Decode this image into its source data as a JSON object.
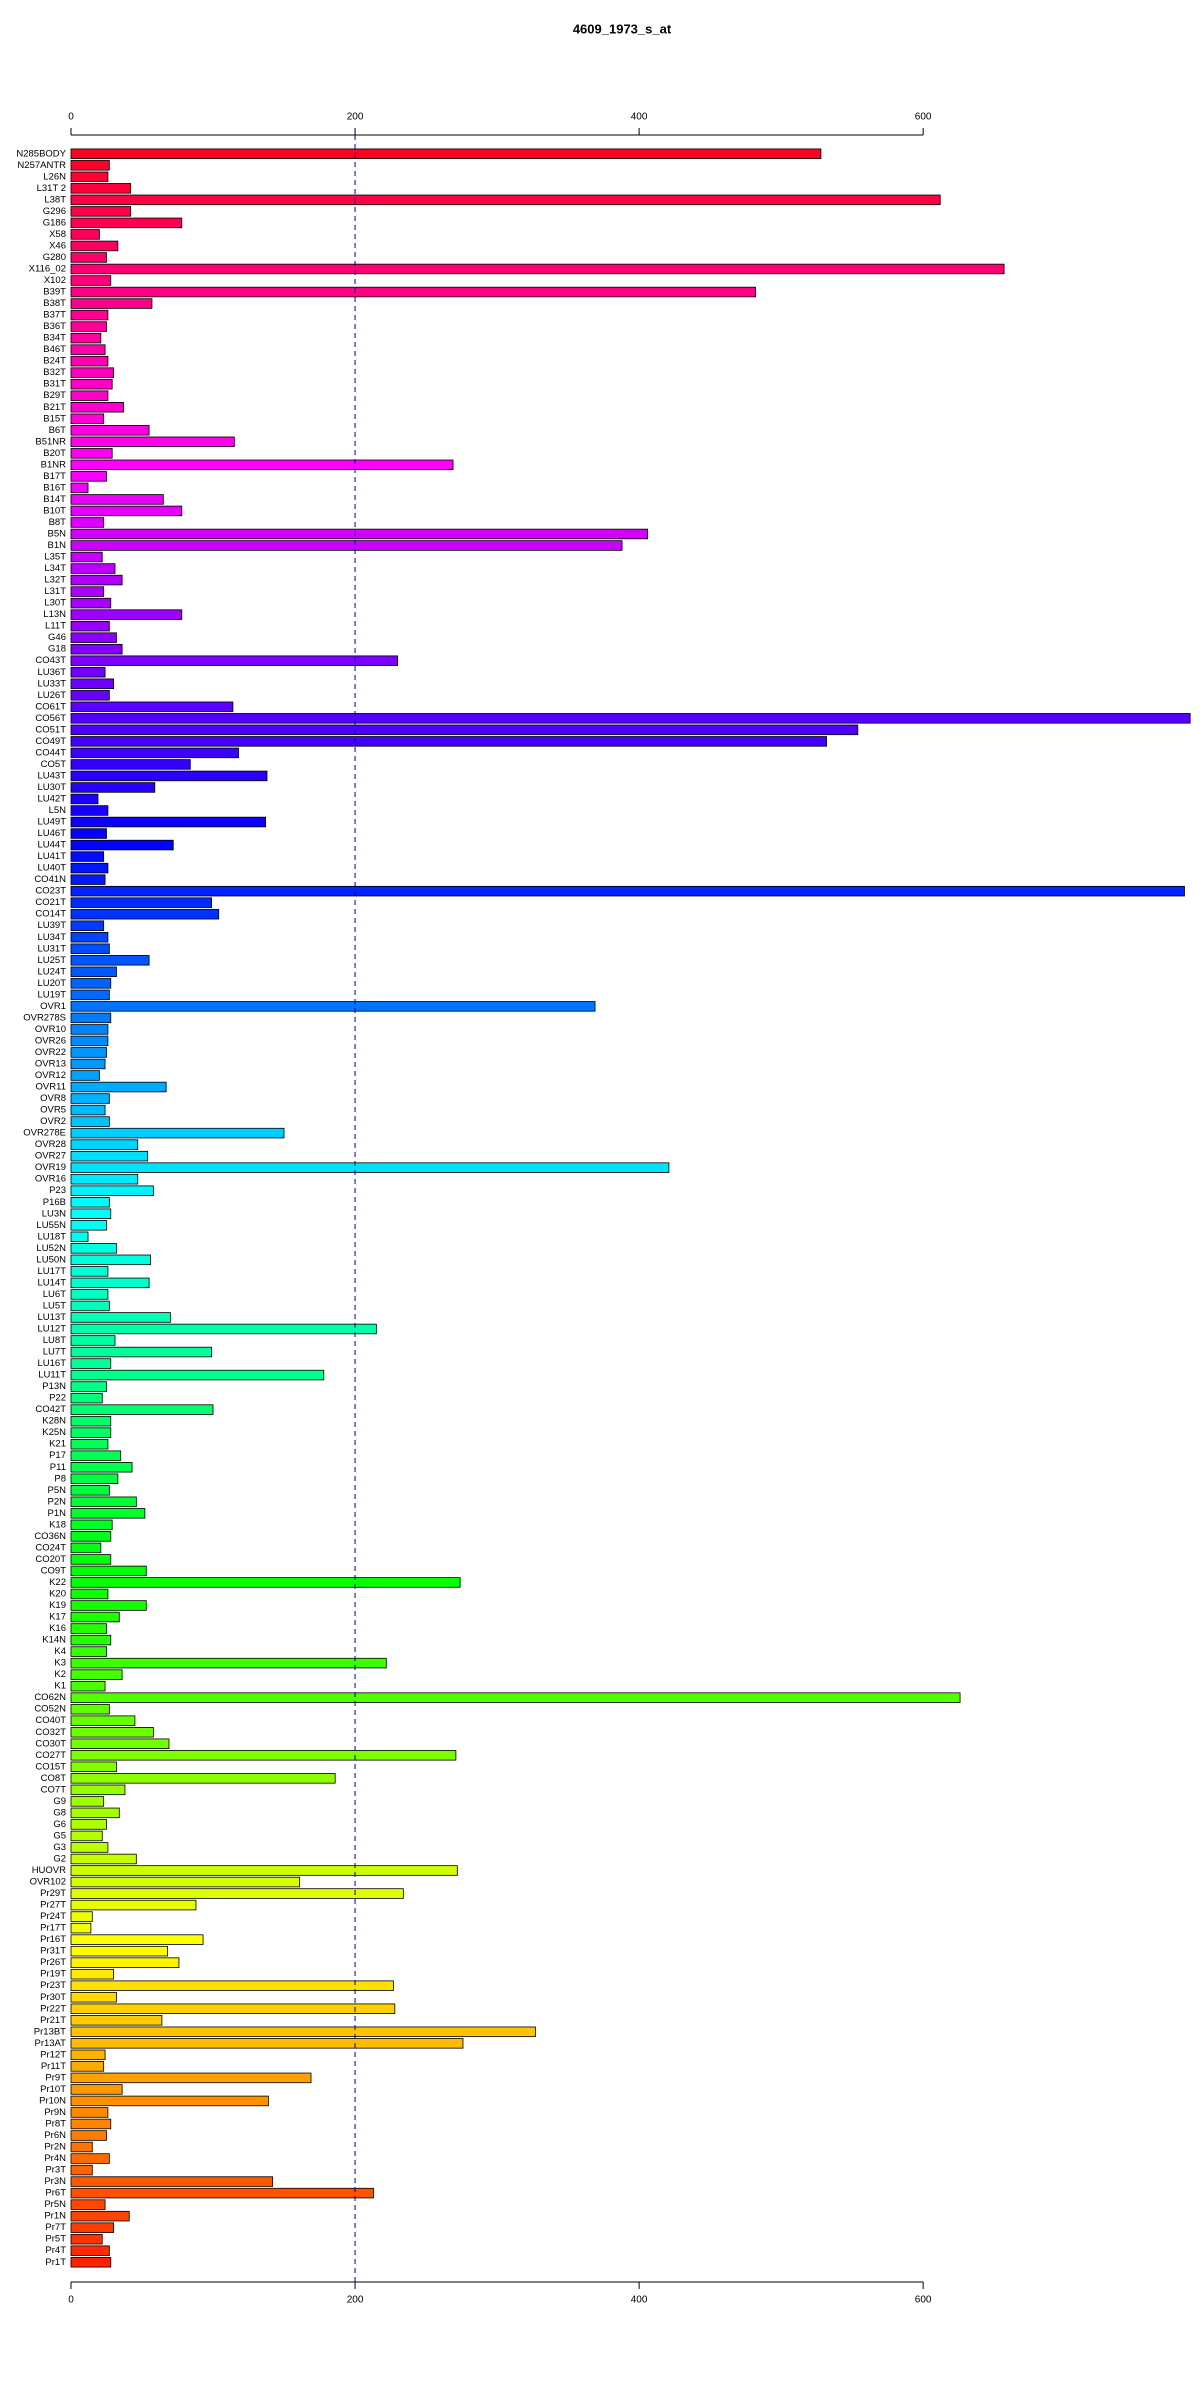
{
  "chart_data": {
    "type": "barh",
    "title": "4609_1973_s_at",
    "categories": [
      "N285BODY",
      "N257ANTR",
      "L26N",
      "L31T 2",
      "L38T",
      "G296",
      "G186",
      "X58",
      "X46",
      "G280",
      "X116_02",
      "X102",
      "B39T",
      "B38T",
      "B37T",
      "B36T",
      "B34T",
      "B46T",
      "B24T",
      "B32T",
      "B31T",
      "B29T",
      "B21T",
      "B15T",
      "B6T",
      "B51NR",
      "B20T",
      "B1NR",
      "B17T",
      "B16T",
      "B14T",
      "B10T",
      "B8T",
      "B5N",
      "B1N",
      "L35T",
      "L34T",
      "L32T",
      "L31T",
      "L30T",
      "L13N",
      "L11T",
      "G46",
      "G18",
      "CO43T",
      "LU36T",
      "LU33T",
      "LU26T",
      "CO61T",
      "CO56T",
      "CO51T",
      "CO49T",
      "CO44T",
      "CO5T",
      "LU43T",
      "LU30T",
      "LU42T",
      "L5N",
      "LU49T",
      "LU46T",
      "LU44T",
      "LU41T",
      "LU40T",
      "CO41N",
      "CO23T",
      "CO21T",
      "CO14T",
      "LU39T",
      "LU34T",
      "LU31T",
      "LU25T",
      "LU24T",
      "LU20T",
      "LU19T",
      "OVR1",
      "OVR278S",
      "OVR10",
      "OVR26",
      "OVR22",
      "OVR13",
      "OVR12",
      "OVR11",
      "OVR8",
      "OVR5",
      "OVR2",
      "OVR278E",
      "OVR28",
      "OVR27",
      "OVR19",
      "OVR16",
      "P23",
      "P16B",
      "LU3N",
      "LU55N",
      "LU18T",
      "LU52N",
      "LU50N",
      "LU17T",
      "LU14T",
      "LU6T",
      "LU5T",
      "LU13T",
      "LU12T",
      "LU8T",
      "LU7T",
      "LU16T",
      "LU11T",
      "P13N",
      "P22",
      "CO42T",
      "K28N",
      "K25N",
      "K21",
      "P17",
      "P11",
      "P8",
      "P5N",
      "P2N",
      "P1N",
      "K18",
      "CO36N",
      "CO24T",
      "CO20T",
      "CO9T",
      "K22",
      "K20",
      "K19",
      "K17",
      "K16",
      "K14N",
      "K4",
      "K3",
      "K2",
      "K1",
      "CO62N",
      "CO52N",
      "CO40T",
      "CO32T",
      "CO30T",
      "CO27T",
      "CO15T",
      "CO8T",
      "CO7T",
      "G9",
      "G8",
      "G6",
      "G5",
      "G3",
      "G2",
      "HUOVR",
      "OVR102",
      "Pr29T",
      "Pr27T",
      "Pr24T",
      "Pr17T",
      "Pr16T",
      "Pr31T",
      "Pr26T",
      "Pr19T",
      "Pr23T",
      "Pr30T",
      "Pr22T",
      "Pr21T",
      "Pr13BT",
      "Pr13AT",
      "Pr12T",
      "Pr11T",
      "Pr9T",
      "Pr10T",
      "Pr10N",
      "Pr9N",
      "Pr8T",
      "Pr6N",
      "Pr2N",
      "Pr4N",
      "Pr3T",
      "Pr3N",
      "Pr6T",
      "Pr5N",
      "Pr1N",
      "Pr7T",
      "Pr5T",
      "Pr4T",
      "Pr1T"
    ],
    "values": [
      528,
      27,
      26,
      42,
      612,
      42,
      78,
      20,
      33,
      25,
      657,
      28,
      482,
      57,
      26,
      25,
      21,
      24,
      26,
      30,
      29,
      26,
      37,
      23,
      55,
      115,
      29,
      269,
      25,
      12,
      65,
      78,
      23,
      406,
      388,
      22,
      31,
      36,
      23,
      28,
      78,
      27,
      32,
      36,
      230,
      24,
      30,
      27,
      114,
      788,
      554,
      532,
      118,
      84,
      138,
      59,
      19,
      26,
      137,
      25,
      72,
      23,
      26,
      24,
      784,
      99,
      104,
      23,
      26,
      27,
      55,
      32,
      28,
      27,
      369,
      28,
      26,
      26,
      25,
      24,
      20,
      67,
      27,
      24,
      27,
      150,
      47,
      54,
      421,
      47,
      58,
      27,
      28,
      25,
      12,
      32,
      56,
      26,
      55,
      26,
      27,
      70,
      215,
      31,
      99,
      28,
      178,
      25,
      22,
      100,
      28,
      28,
      26,
      35,
      43,
      33,
      27,
      46,
      52,
      29,
      28,
      21,
      28,
      53,
      274,
      26,
      53,
      34,
      25,
      28,
      25,
      222,
      36,
      24,
      626,
      27,
      45,
      58,
      69,
      271,
      32,
      186,
      38,
      23,
      34,
      25,
      22,
      26,
      46,
      272,
      161,
      234,
      88,
      15,
      14,
      93,
      68,
      76,
      30,
      227,
      32,
      228,
      64,
      327,
      276,
      24,
      23,
      169,
      36,
      139,
      26,
      28,
      25,
      15,
      27,
      15,
      142,
      213,
      24,
      41,
      30,
      22,
      27,
      28
    ],
    "colors": [
      "hsl(352,100%,50%)",
      "hsl(350,100%,50%)",
      "hsl(348,100%,50%)",
      "hsl(346,100%,50%)",
      "hsl(344,100%,50%)",
      "hsl(343,100%,50%)",
      "hsl(341,100%,50%)",
      "hsl(339,100%,50%)",
      "hsl(337,100%,50%)",
      "hsl(335,100%,50%)",
      "hsl(333,100%,50%)",
      "hsl(331,100%,50%)",
      "hsl(329,100%,50%)",
      "hsl(328,100%,50%)",
      "hsl(326,100%,50%)",
      "hsl(324,100%,50%)",
      "hsl(322,100%,50%)",
      "hsl(320,100%,50%)",
      "hsl(318,100%,50%)",
      "hsl(316,100%,50%)",
      "hsl(314,100%,50%)",
      "hsl(313,100%,50%)",
      "hsl(311,100%,50%)",
      "hsl(309,100%,50%)",
      "hsl(307,100%,50%)",
      "hsl(305,100%,50%)",
      "hsl(303,100%,50%)",
      "hsl(301,100%,50%)",
      "hsl(299,100%,50%)",
      "hsl(297,100%,50%)",
      "hsl(296,100%,50%)",
      "hsl(294,100%,50%)",
      "hsl(292,100%,50%)",
      "hsl(290,100%,50%)",
      "hsl(288,100%,50%)",
      "hsl(286,100%,50%)",
      "hsl(284,100%,50%)",
      "hsl(282,100%,50%)",
      "hsl(281,100%,50%)",
      "hsl(279,100%,50%)",
      "hsl(277,100%,50%)",
      "hsl(275,100%,50%)",
      "hsl(273,100%,50%)",
      "hsl(271,100%,50%)",
      "hsl(269,100%,50%)",
      "hsl(267,100%,50%)",
      "hsl(266,100%,50%)",
      "hsl(264,100%,50%)",
      "hsl(262,100%,50%)",
      "hsl(260,100%,50%)",
      "hsl(258,100%,50%)",
      "hsl(256,100%,50%)",
      "hsl(254,100%,50%)",
      "hsl(252,100%,50%)",
      "hsl(250,100%,50%)",
      "hsl(249,100%,50%)",
      "hsl(247,100%,50%)",
      "hsl(245,100%,50%)",
      "hsl(243,100%,50%)",
      "hsl(241,100%,50%)",
      "hsl(239,100%,50%)",
      "hsl(237,100%,50%)",
      "hsl(235,100%,50%)",
      "hsl(234,100%,50%)",
      "hsl(232,100%,50%)",
      "hsl(230,100%,50%)",
      "hsl(228,100%,50%)",
      "hsl(226,100%,50%)",
      "hsl(224,100%,50%)",
      "hsl(222,100%,50%)",
      "hsl(220,100%,50%)",
      "hsl(219,100%,50%)",
      "hsl(217,100%,50%)",
      "hsl(215,100%,50%)",
      "hsl(213,100%,50%)",
      "hsl(211,100%,50%)",
      "hsl(209,100%,50%)",
      "hsl(207,100%,50%)",
      "hsl(205,100%,50%)",
      "hsl(204,100%,50%)",
      "hsl(202,100%,50%)",
      "hsl(200,100%,50%)",
      "hsl(198,100%,50%)",
      "hsl(196,100%,50%)",
      "hsl(194,100%,50%)",
      "hsl(192,100%,50%)",
      "hsl(190,100%,50%)",
      "hsl(188,100%,50%)",
      "hsl(187,100%,50%)",
      "hsl(185,100%,50%)",
      "hsl(183,100%,50%)",
      "hsl(181,100%,50%)",
      "hsl(179,100%,50%)",
      "hsl(177,100%,50%)",
      "hsl(175,100%,50%)",
      "hsl(173,100%,50%)",
      "hsl(172,100%,50%)",
      "hsl(170,100%,50%)",
      "hsl(168,100%,50%)",
      "hsl(166,100%,50%)",
      "hsl(164,100%,50%)",
      "hsl(162,100%,50%)",
      "hsl(160,100%,50%)",
      "hsl(158,100%,50%)",
      "hsl(157,100%,50%)",
      "hsl(155,100%,50%)",
      "hsl(153,100%,50%)",
      "hsl(151,100%,50%)",
      "hsl(149,100%,50%)",
      "hsl(147,100%,50%)",
      "hsl(145,100%,50%)",
      "hsl(143,100%,50%)",
      "hsl(141,100%,50%)",
      "hsl(140,100%,50%)",
      "hsl(138,100%,50%)",
      "hsl(136,100%,50%)",
      "hsl(134,100%,50%)",
      "hsl(132,100%,50%)",
      "hsl(130,100%,50%)",
      "hsl(128,100%,50%)",
      "hsl(126,100%,50%)",
      "hsl(125,100%,50%)",
      "hsl(123,100%,50%)",
      "hsl(121,100%,50%)",
      "hsl(119,100%,50%)",
      "hsl(117,100%,50%)",
      "hsl(115,100%,50%)",
      "hsl(113,100%,50%)",
      "hsl(111,100%,50%)",
      "hsl(110,100%,50%)",
      "hsl(108,100%,50%)",
      "hsl(106,100%,50%)",
      "hsl(104,100%,50%)",
      "hsl(102,100%,50%)",
      "hsl(100,100%,50%)",
      "hsl(98,100%,50%)",
      "hsl(96,100%,50%)",
      "hsl(94,100%,50%)",
      "hsl(93,100%,50%)",
      "hsl(91,100%,50%)",
      "hsl(89,100%,50%)",
      "hsl(87,100%,50%)",
      "hsl(85,100%,50%)",
      "hsl(83,100%,50%)",
      "hsl(81,100%,50%)",
      "hsl(79,100%,50%)",
      "hsl(78,100%,50%)",
      "hsl(76,100%,50%)",
      "hsl(74,100%,50%)",
      "hsl(72,100%,50%)",
      "hsl(70,100%,50%)",
      "hsl(68,100%,50%)",
      "hsl(66,100%,50%)",
      "hsl(64,100%,50%)",
      "hsl(63,100%,50%)",
      "hsl(61,100%,50%)",
      "hsl(59,100%,50%)",
      "hsl(57,100%,50%)",
      "hsl(55,100%,50%)",
      "hsl(53,100%,50%)",
      "hsl(51,100%,50%)",
      "hsl(49,100%,50%)",
      "hsl(48,100%,50%)",
      "hsl(46,100%,50%)",
      "hsl(44,100%,50%)",
      "hsl(42,100%,50%)",
      "hsl(40,100%,50%)",
      "hsl(38,100%,50%)",
      "hsl(36,100%,50%)",
      "hsl(34,100%,50%)",
      "hsl(32,100%,50%)",
      "hsl(31,100%,50%)",
      "hsl(29,100%,50%)",
      "hsl(27,100%,50%)",
      "hsl(25,100%,50%)",
      "hsl(23,100%,50%)",
      "hsl(21,100%,50%)",
      "hsl(19,100%,50%)",
      "hsl(17,100%,50%)",
      "hsl(16,100%,50%)",
      "hsl(14,100%,50%)",
      "hsl(12,100%,50%)",
      "hsl(10,100%,50%)",
      "hsl(8,100%,50%)"
    ],
    "xlim": [
      0,
      790
    ],
    "xticks": [
      0,
      200,
      400,
      600
    ],
    "reference_line": 200
  }
}
